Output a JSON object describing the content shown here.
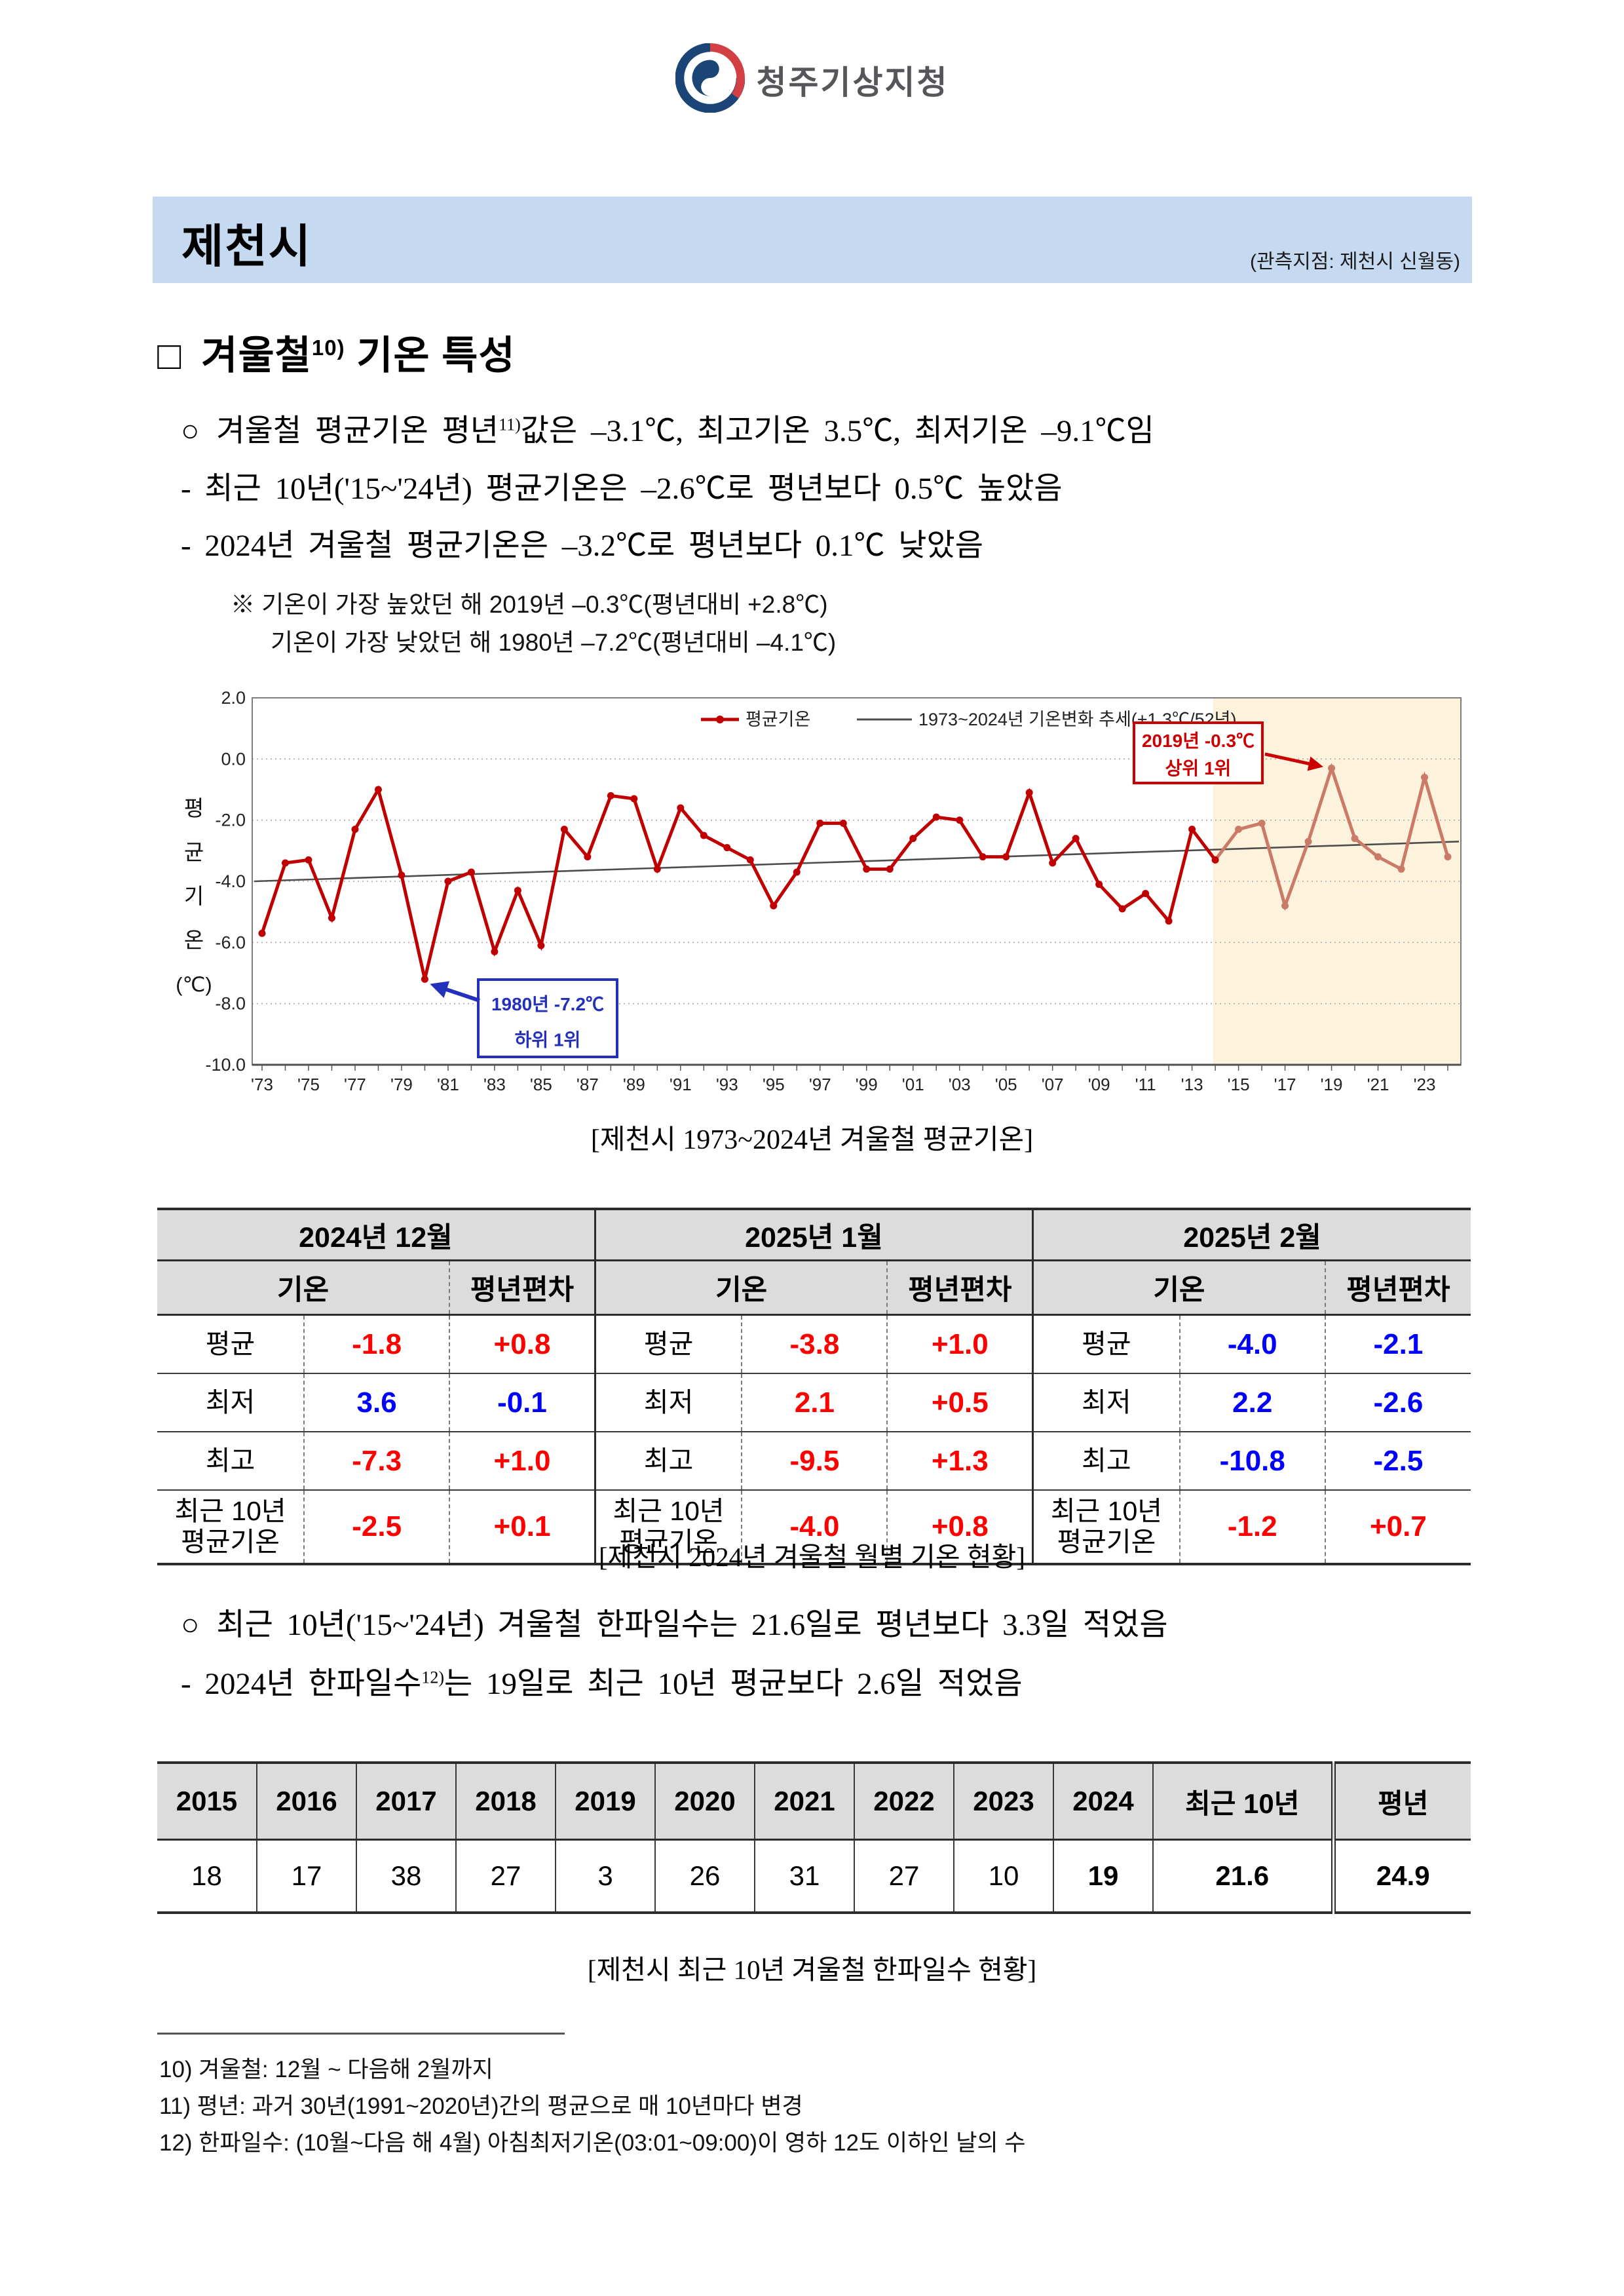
{
  "colors": {
    "red": "#ff0000",
    "blue": "#0000ff",
    "banner_bg": "#c5d9f1",
    "table_header_bg": "#dcdcdc",
    "chart_line": "#c00000",
    "chart_line_recent": "#cc7a68",
    "highlight_bg": "#fdf3dc",
    "annotation_red": "#cc0000",
    "annotation_blue": "#2230bb",
    "trend": "#4d4d4d",
    "logo_navy": "#1b4576",
    "logo_red": "#d23f44"
  },
  "header": {
    "org": "청주기상지청"
  },
  "banner": {
    "title": "제천시",
    "station": "(관측지점: 제천시 신월동)"
  },
  "heading": {
    "marker": "□",
    "pre": "겨울철",
    "sup": "10)",
    "post": " 기온 특성"
  },
  "bullets": {
    "b1_marker": "○",
    "b1_pre": "겨울철 평균기온 평년",
    "b1_sup": "11)",
    "b1_post": "값은 –3.1℃, 최고기온 3.5℃, 최저기온 –9.1℃임",
    "b2": "- 최근 10년('15~'24년) 평균기온은 –2.6℃로 평년보다 0.5℃ 높았음",
    "b3": "- 2024년 겨울철 평균기온은 –3.2℃로 평년보다 0.1℃ 낮았음",
    "note1": "※ 기온이 가장 높았던 해 2019년 –0.3℃(평년대비 +2.8℃)",
    "note2": "기온이 가장 낮았던 해 1980년 –7.2℃(평년대비 –4.1℃)"
  },
  "chart_data": {
    "type": "line",
    "title": "[제천시 1973~2024년 겨울철 평균기온]",
    "ylabel": "평균기온(℃)",
    "ylabel_chars": [
      "평",
      "균",
      "기",
      "온",
      "(℃)"
    ],
    "ylim": [
      -10,
      2
    ],
    "yticks": [
      2,
      0,
      -2,
      -4,
      -6,
      -8,
      -10
    ],
    "x_start": 1973,
    "x_end": 2024,
    "grid": true,
    "legend_position": "top-center",
    "series": [
      {
        "name": "평균기온",
        "values": [
          -5.7,
          -3.4,
          -3.3,
          -5.2,
          -2.3,
          -1.0,
          -3.8,
          -7.2,
          -4.0,
          -3.7,
          -6.3,
          -4.3,
          -6.1,
          -2.3,
          -3.2,
          -1.2,
          -1.3,
          -3.6,
          -1.6,
          -2.5,
          -2.9,
          -3.3,
          -4.8,
          -3.7,
          -2.1,
          -2.1,
          -3.6,
          -3.6,
          -2.6,
          -1.9,
          -2.0,
          -3.2,
          -3.2,
          -1.1,
          -3.4,
          -2.6,
          -4.1,
          -4.9,
          -4.4,
          -5.3,
          -2.3,
          -3.3,
          -2.3,
          -2.1,
          -4.8,
          -2.7,
          -0.3,
          -2.6,
          -3.2,
          -3.6,
          -0.6,
          -3.2
        ]
      }
    ],
    "trend": {
      "name": "1973~2024년 기온변화 추세(+1.3℃/52년)",
      "value_start": -4.0,
      "value_end": -2.7
    },
    "highlight_region": {
      "year_from": 2013.9,
      "year_to": 2024.6
    },
    "recent_split_year": 2014,
    "annotations": [
      {
        "line1": "2019년 -0.3℃",
        "line2": "상위 1위",
        "target_year": 2019,
        "target_value": -0.3,
        "side": "right",
        "color_key": "annotation_red"
      },
      {
        "line1": "1980년 -7.2℃",
        "line2": "하위 1위",
        "target_year": 1980,
        "target_value": -7.2,
        "side": "left",
        "color_key": "annotation_blue"
      }
    ]
  },
  "chart_caption": "[제천시 1973~2024년 겨울철 평균기온]",
  "monthly_table": {
    "group_headers": [
      "2024년 12월",
      "2025년 1월",
      "2025년 2월"
    ],
    "sub_headers": [
      "기온",
      "평년편차"
    ],
    "row_labels": [
      "평균",
      "최저",
      "최고",
      "최근 10년 평균기온"
    ],
    "groups": [
      {
        "values": [
          [
            "-1.8",
            "+0.8"
          ],
          [
            "3.6",
            "-0.1"
          ],
          [
            "-7.3",
            "+1.0"
          ],
          [
            "-2.5",
            "+0.1"
          ]
        ],
        "colors": [
          [
            "red",
            "red"
          ],
          [
            "blue",
            "blue"
          ],
          [
            "red",
            "red"
          ],
          [
            "red",
            "red"
          ]
        ]
      },
      {
        "values": [
          [
            "-3.8",
            "+1.0"
          ],
          [
            "2.1",
            "+0.5"
          ],
          [
            "-9.5",
            "+1.3"
          ],
          [
            "-4.0",
            "+0.8"
          ]
        ],
        "colors": [
          [
            "red",
            "red"
          ],
          [
            "red",
            "red"
          ],
          [
            "red",
            "red"
          ],
          [
            "red",
            "red"
          ]
        ]
      },
      {
        "values": [
          [
            "-4.0",
            "-2.1"
          ],
          [
            "2.2",
            "-2.6"
          ],
          [
            "-10.8",
            "-2.5"
          ],
          [
            "-1.2",
            "+0.7"
          ]
        ],
        "colors": [
          [
            "blue",
            "blue"
          ],
          [
            "blue",
            "blue"
          ],
          [
            "blue",
            "blue"
          ],
          [
            "red",
            "red"
          ]
        ]
      }
    ],
    "caption": "[제천시 2024년 겨울철 월별 기온 현황]"
  },
  "bullets2": {
    "b1_marker": "○",
    "b1": "최근 10년('15~'24년) 겨울철 한파일수는 21.6일로 평년보다 3.3일 적었음",
    "b2_pre": "- 2024년 한파일수",
    "b2_sup": "12)",
    "b2_post": "는 19일로 최근 10년 평균보다 2.6일 적었음"
  },
  "cold_days_table": {
    "headers": [
      "2015",
      "2016",
      "2017",
      "2018",
      "2019",
      "2020",
      "2021",
      "2022",
      "2023",
      "2024",
      "최근 10년",
      "평년"
    ],
    "values": [
      "18",
      "17",
      "38",
      "27",
      "3",
      "26",
      "31",
      "27",
      "10",
      "19",
      "21.6",
      "24.9"
    ],
    "bold_columns": [
      9,
      10,
      11
    ],
    "caption": "[제천시 최근 10년 겨울철 한파일수 현황]"
  },
  "footnotes": [
    "10) 겨울철: 12월 ~ 다음해 2월까지",
    "11) 평년: 과거 30년(1991~2020년)간의 평균으로 매 10년마다 변경",
    "12) 한파일수: (10월~다음 해 4월) 아침최저기온(03:01~09:00)이 영하 12도 이하인 날의 수"
  ]
}
